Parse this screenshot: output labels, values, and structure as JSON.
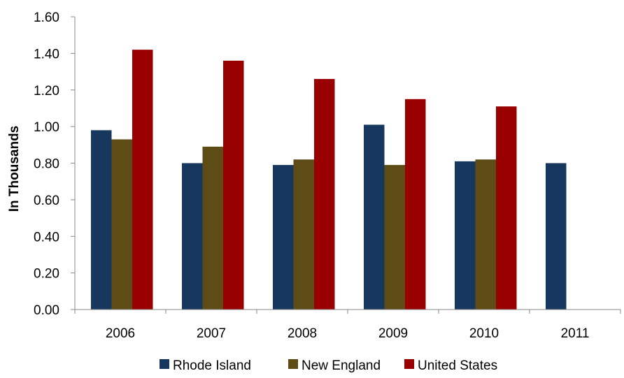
{
  "chart_data": {
    "type": "bar",
    "title": "",
    "xlabel": "",
    "ylabel": "In Thousands",
    "ylim": [
      0,
      1.6
    ],
    "yticks": [
      "0.00",
      "0.20",
      "0.40",
      "0.60",
      "0.80",
      "1.00",
      "1.20",
      "1.40",
      "1.60"
    ],
    "categories": [
      "2006",
      "2007",
      "2008",
      "2009",
      "2010",
      "2011"
    ],
    "series": [
      {
        "name": "Rhode Island",
        "color": "#17375E",
        "values": [
          0.98,
          0.8,
          0.79,
          1.01,
          0.81,
          0.8
        ]
      },
      {
        "name": "New England",
        "color": "#5E4C16",
        "values": [
          0.93,
          0.89,
          0.82,
          0.79,
          0.82,
          null
        ]
      },
      {
        "name": "United States",
        "color": "#990000",
        "values": [
          1.42,
          1.36,
          1.26,
          1.15,
          1.11,
          null
        ]
      }
    ],
    "grid": false,
    "legend_position": "bottom"
  }
}
